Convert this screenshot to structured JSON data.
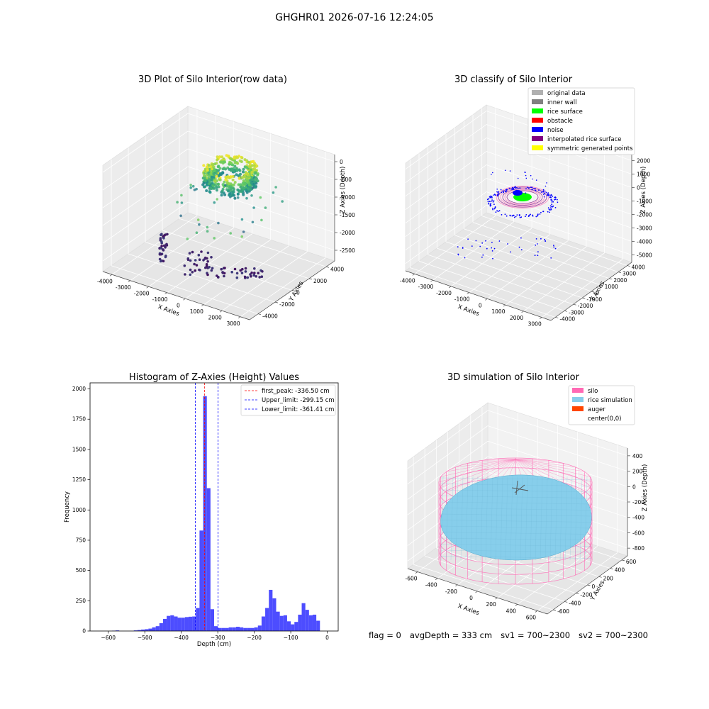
{
  "figure": {
    "suptitle": "GHGHR01 2026-07-16 12:24:05",
    "status": {
      "flag": "flag = 0",
      "avg_depth": "avgDepth = 333 cm",
      "sv1": "sv1 = 700~2300",
      "sv2": "sv2 = 700~2300"
    }
  },
  "colors": {
    "original_data": "#b0b0b0",
    "inner_wall": "#808080",
    "rice_surface": "#00ff00",
    "obstacle": "#ff0000",
    "noise": "#0000ff",
    "interpolated_rice_surface": "#800080",
    "symmetric_generated_points": "#ffff00",
    "histogram_bar": "#4d4dff",
    "first_peak_line": "#ff0000",
    "limit_line": "#0000ff",
    "silo": "#ff69b4",
    "rice_simulation": "#87ceeb",
    "auger": "#ff4500"
  },
  "chart_data": [
    {
      "type": "scatter",
      "projection": "3d",
      "title": "3D Plot of Silo Interior(row data)",
      "xlabel": "X Axies",
      "ylabel": "Y Axies",
      "zlabel": "Z Axies (Depth)",
      "x_ticks": [
        "-4000",
        "-3000",
        "-2000",
        "-1000",
        "0",
        "1000",
        "2000",
        "3000"
      ],
      "y_ticks": [
        "-4000",
        "-2000",
        "0",
        "2000",
        "4000"
      ],
      "z_ticks": [
        "-2500",
        "-2000",
        "-1500",
        "-1000",
        "-500",
        "0"
      ],
      "xlim": [
        -4000,
        3500
      ],
      "ylim": [
        -4500,
        4500
      ],
      "zlim": [
        -2800,
        0
      ],
      "colormap": "viridis",
      "clusters": [
        {
          "x": [
            -400,
            400
          ],
          "y": [
            -400,
            400
          ],
          "z": [
            -2000,
            -900
          ],
          "count": 420
        },
        {
          "x": [
            -4000,
            -2800
          ],
          "y": [
            -4000,
            -2500
          ],
          "z": [
            -2600,
            -2300
          ],
          "count": 40
        },
        {
          "x": [
            -2500,
            0
          ],
          "y": [
            -4000,
            -2800
          ],
          "z": [
            -2600,
            -2300
          ],
          "count": 45
        }
      ]
    },
    {
      "type": "scatter",
      "projection": "3d",
      "title": "3D classify of Silo Interior",
      "xlabel": "X Axies",
      "ylabel": "Y Axies",
      "zlabel": "Z Axies (Depth)",
      "x_ticks": [
        "-4000",
        "-3000",
        "-2000",
        "-1000",
        "0",
        "1000",
        "2000",
        "3000"
      ],
      "y_ticks": [
        "-4000",
        "-3000",
        "-2000",
        "-1000",
        "0",
        "1000",
        "2000",
        "3000",
        "4000"
      ],
      "z_ticks": [
        "-5000",
        "-4000",
        "-3000",
        "-2000",
        "-1000",
        "0",
        "1000",
        "2000"
      ],
      "zlim": [
        -5400,
        2200
      ],
      "legend": {
        "position": "upper right",
        "entries": [
          {
            "label": "original data",
            "color_key": "original_data"
          },
          {
            "label": "inner wall",
            "color_key": "inner_wall"
          },
          {
            "label": "rice surface",
            "color_key": "rice_surface"
          },
          {
            "label": "obstacle",
            "color_key": "obstacle"
          },
          {
            "label": "noise",
            "color_key": "noise"
          },
          {
            "label": "interpolated rice surface",
            "color_key": "interpolated_rice_surface"
          },
          {
            "label": "symmetric generated points",
            "color_key": "symmetric_generated_points"
          }
        ]
      }
    },
    {
      "type": "bar",
      "title": "Histogram of Z-Axies (Height) Values",
      "xlabel": "Depth (cm)",
      "ylabel": "Frequency",
      "xlim": [
        -650,
        30
      ],
      "ylim": [
        0,
        2050
      ],
      "x_ticks": [
        -600,
        -500,
        -400,
        -300,
        -200,
        -100,
        0
      ],
      "y_ticks": [
        0,
        250,
        500,
        750,
        1000,
        1250,
        1500,
        1750,
        2000
      ],
      "bin_width": 10,
      "bin_starts": [
        -590,
        -580,
        -530,
        -520,
        -510,
        -500,
        -490,
        -480,
        -470,
        -460,
        -450,
        -440,
        -430,
        -420,
        -410,
        -400,
        -390,
        -380,
        -370,
        -360,
        -350,
        -340,
        -330,
        -320,
        -310,
        -300,
        -290,
        -280,
        -270,
        -260,
        -250,
        -240,
        -230,
        -220,
        -210,
        -200,
        -190,
        -180,
        -170,
        -160,
        -150,
        -140,
        -130,
        -120,
        -110,
        -100,
        -90,
        -80,
        -70,
        -60,
        -50,
        -40,
        -30,
        -20,
        -10
      ],
      "values": [
        3,
        5,
        5,
        8,
        12,
        15,
        20,
        30,
        40,
        65,
        100,
        125,
        130,
        120,
        110,
        110,
        115,
        118,
        120,
        190,
        830,
        1940,
        1180,
        180,
        40,
        25,
        25,
        25,
        30,
        30,
        35,
        30,
        25,
        25,
        25,
        30,
        45,
        120,
        190,
        340,
        270,
        160,
        125,
        130,
        80,
        55,
        75,
        135,
        230,
        175,
        130,
        135,
        85,
        0,
        0
      ],
      "vlines": [
        {
          "label": "first_peak: -336.50 cm",
          "x": -336.5,
          "color_key": "first_peak_line"
        },
        {
          "label": "Upper_limit: -299.15 cm",
          "x": -299.15,
          "color_key": "limit_line"
        },
        {
          "label": "Lower_limit: -361.41 cm",
          "x": -361.41,
          "color_key": "limit_line"
        }
      ],
      "legend": {
        "position": "upper right"
      }
    },
    {
      "type": "surface",
      "projection": "3d",
      "title": "3D simulation of Silo Interior",
      "xlabel": "X Axies",
      "ylabel": "Y Axies",
      "zlabel": "Z Axies (Depth)",
      "x_ticks": [
        "-600",
        "-400",
        "-200",
        "0",
        "200",
        "400",
        "600"
      ],
      "y_ticks": [
        "-600",
        "-400",
        "-200",
        "0",
        "200",
        "400",
        "600"
      ],
      "z_ticks": [
        "-800",
        "-600",
        "-400",
        "-200",
        "0",
        "200",
        "400"
      ],
      "zlim": [
        -950,
        500
      ],
      "legend": {
        "position": "upper right",
        "entries": [
          {
            "label": "silo",
            "color_key": "silo"
          },
          {
            "label": "rice simulation",
            "color_key": "rice_simulation"
          },
          {
            "label": "auger",
            "color_key": "auger"
          },
          {
            "label": "center(0,0)",
            "color_key": ""
          }
        ]
      }
    }
  ]
}
